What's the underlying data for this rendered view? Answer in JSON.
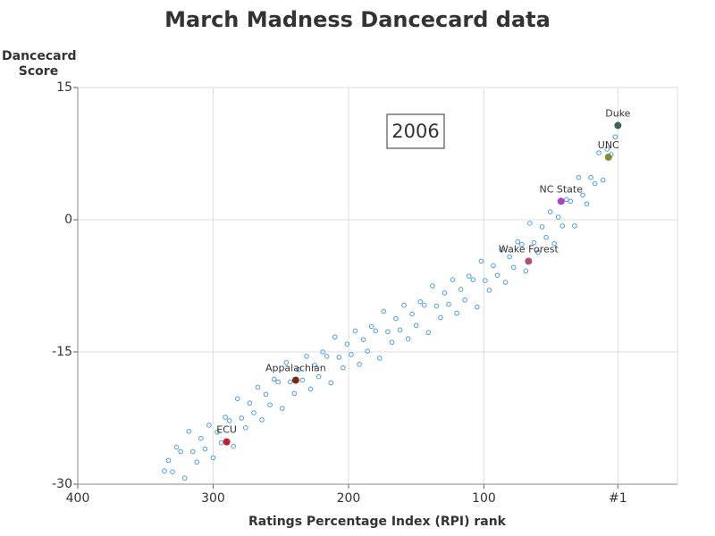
{
  "chart_data": {
    "type": "scatter",
    "title": "March Madness Dancecard data",
    "xlabel": "Ratings Percentage Index (RPI) rank",
    "ylabel": "Dancecard Score",
    "annotation": "2006",
    "xlim": [
      400,
      -43
    ],
    "ylim": [
      -30,
      15
    ],
    "xticks": [
      400,
      300,
      200,
      100,
      {
        "value": 1,
        "label": "#1"
      }
    ],
    "yticks": [
      -30,
      -15,
      0,
      15
    ],
    "grid": true,
    "series": [
      {
        "color": "#4d9de0",
        "x": [
          3,
          6,
          9,
          12,
          15,
          18,
          21,
          24,
          27,
          30,
          33,
          36,
          39,
          42,
          45,
          48,
          51,
          54,
          57,
          60,
          63,
          66,
          69,
          72,
          75,
          78,
          81,
          84,
          87,
          90,
          93,
          96,
          99,
          102,
          105,
          108,
          111,
          114,
          117,
          120,
          123,
          126,
          129,
          132,
          135,
          138,
          141,
          144,
          147,
          150,
          153,
          156,
          159,
          162,
          165,
          168,
          171,
          174,
          177,
          180,
          183,
          186,
          189,
          192,
          195,
          198,
          201,
          204,
          207,
          210,
          213,
          216,
          219,
          222,
          225,
          228,
          231,
          234,
          237,
          240,
          243,
          246,
          249,
          252,
          255,
          258,
          261,
          264,
          267,
          270,
          273,
          276,
          279,
          282,
          285,
          288,
          291,
          294,
          297,
          300,
          303,
          306,
          309,
          312,
          315,
          318,
          321,
          324,
          327,
          330,
          333,
          336
        ],
        "values": [
          9.4,
          7.4,
          8.0,
          4.5,
          7.6,
          4.1,
          4.8,
          1.8,
          2.8,
          4.8,
          -0.7,
          2.1,
          2.3,
          -0.7,
          0.3,
          -2.7,
          0.9,
          -2.0,
          -0.8,
          -3.7,
          -2.6,
          -0.4,
          -5.8,
          -2.8,
          -2.5,
          -5.4,
          -4.2,
          -7.1,
          -3.4,
          -6.3,
          -5.2,
          -8.0,
          -6.9,
          -4.7,
          -9.9,
          -6.8,
          -6.4,
          -9.1,
          -7.9,
          -10.6,
          -6.8,
          -9.6,
          -8.3,
          -11.1,
          -9.8,
          -7.5,
          -12.8,
          -9.7,
          -9.3,
          -12.0,
          -10.7,
          -13.5,
          -9.7,
          -12.5,
          -11.2,
          -13.9,
          -12.7,
          -10.4,
          -15.7,
          -12.6,
          -12.1,
          -14.9,
          -13.6,
          -16.4,
          -12.6,
          -15.3,
          -14.1,
          -16.8,
          -15.6,
          -13.3,
          -18.5,
          -15.5,
          -15.0,
          -17.8,
          -16.5,
          -19.2,
          -15.5,
          -18.2,
          -17.0,
          -19.7,
          -18.4,
          -16.2,
          -21.4,
          -18.4,
          -18.1,
          -21.0,
          -19.8,
          -22.7,
          -19.0,
          -21.9,
          -20.8,
          -23.6,
          -22.5,
          -20.3,
          -25.7,
          -22.8,
          -22.4,
          -25.3,
          -24.1,
          -27.0,
          -23.3,
          -26.0,
          -24.8,
          -27.5,
          -26.3,
          -24.0,
          -29.3,
          -26.3,
          -25.8,
          -28.6,
          -27.3,
          -28.5
        ]
      }
    ],
    "highlights": [
      {
        "label": "Duke",
        "x": 1,
        "y": 10.7,
        "color": "#3d6450"
      },
      {
        "label": "UNC",
        "x": 8,
        "y": 7.1,
        "color": "#7d9030"
      },
      {
        "label": "NC State",
        "x": 43,
        "y": 2.1,
        "color": "#b040c8"
      },
      {
        "label": "Wake Forest",
        "x": 67,
        "y": -4.7,
        "color": "#b0507a"
      },
      {
        "label": "Appalachian",
        "x": 239,
        "y": -18.2,
        "color": "#7a2a12"
      },
      {
        "label": "ECU",
        "x": 290,
        "y": -25.2,
        "color": "#c4202c"
      }
    ]
  }
}
